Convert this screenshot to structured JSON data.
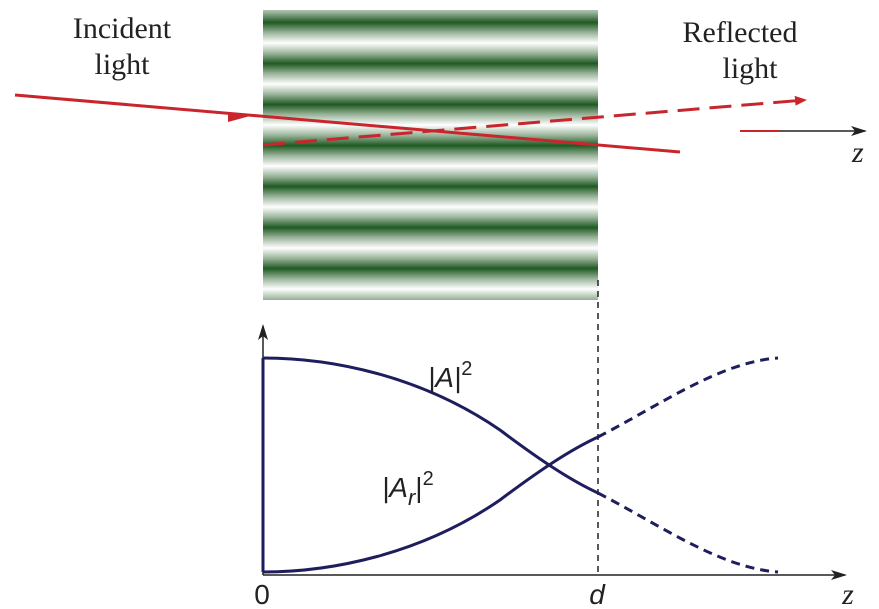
{
  "top": {
    "incident_label": [
      "Incident",
      "light"
    ],
    "reflected_label": [
      "Reflected",
      "light"
    ],
    "axis_label": "z"
  },
  "plot": {
    "curve_a": {
      "base": "|A|",
      "sup": "2"
    },
    "curve_ar": {
      "base": "|A",
      "sub": "r",
      "tail": "|",
      "sup": "2"
    },
    "origin_label": "0",
    "d_label": "d",
    "axis_label": "z"
  }
}
